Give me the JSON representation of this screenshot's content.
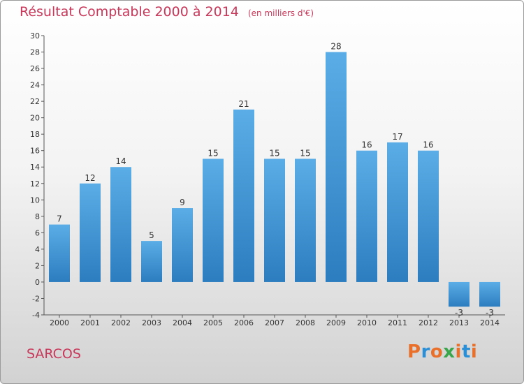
{
  "chart_data": {
    "type": "bar",
    "title": "Résultat Comptable 2000 à 2014",
    "subtitle": "(en milliers d'€)",
    "categories": [
      "2000",
      "2001",
      "2002",
      "2003",
      "2004",
      "2005",
      "2006",
      "2007",
      "2008",
      "2009",
      "2010",
      "2011",
      "2012",
      "2013",
      "2014"
    ],
    "values": [
      7,
      12,
      14,
      5,
      9,
      15,
      21,
      15,
      15,
      28,
      16,
      17,
      16,
      -3,
      -3
    ],
    "ylim": [
      -4,
      30
    ],
    "yticks": [
      -4,
      -2,
      0,
      2,
      4,
      6,
      8,
      10,
      12,
      14,
      16,
      18,
      20,
      22,
      24,
      26,
      28,
      30
    ],
    "xlabel": "",
    "ylabel": "",
    "grid": false
  },
  "commune": "SARCOS",
  "logo": {
    "text": "Proxiti",
    "letter_colors": [
      "#e8702a",
      "#2a8fd6",
      "#e8702a",
      "#3aa64b",
      "#e8702a",
      "#2a8fd6",
      "#e8702a"
    ]
  },
  "colors": {
    "title": "#c8385a",
    "bar_light": "#5aade6",
    "bar_dark": "#2c7dbf"
  }
}
